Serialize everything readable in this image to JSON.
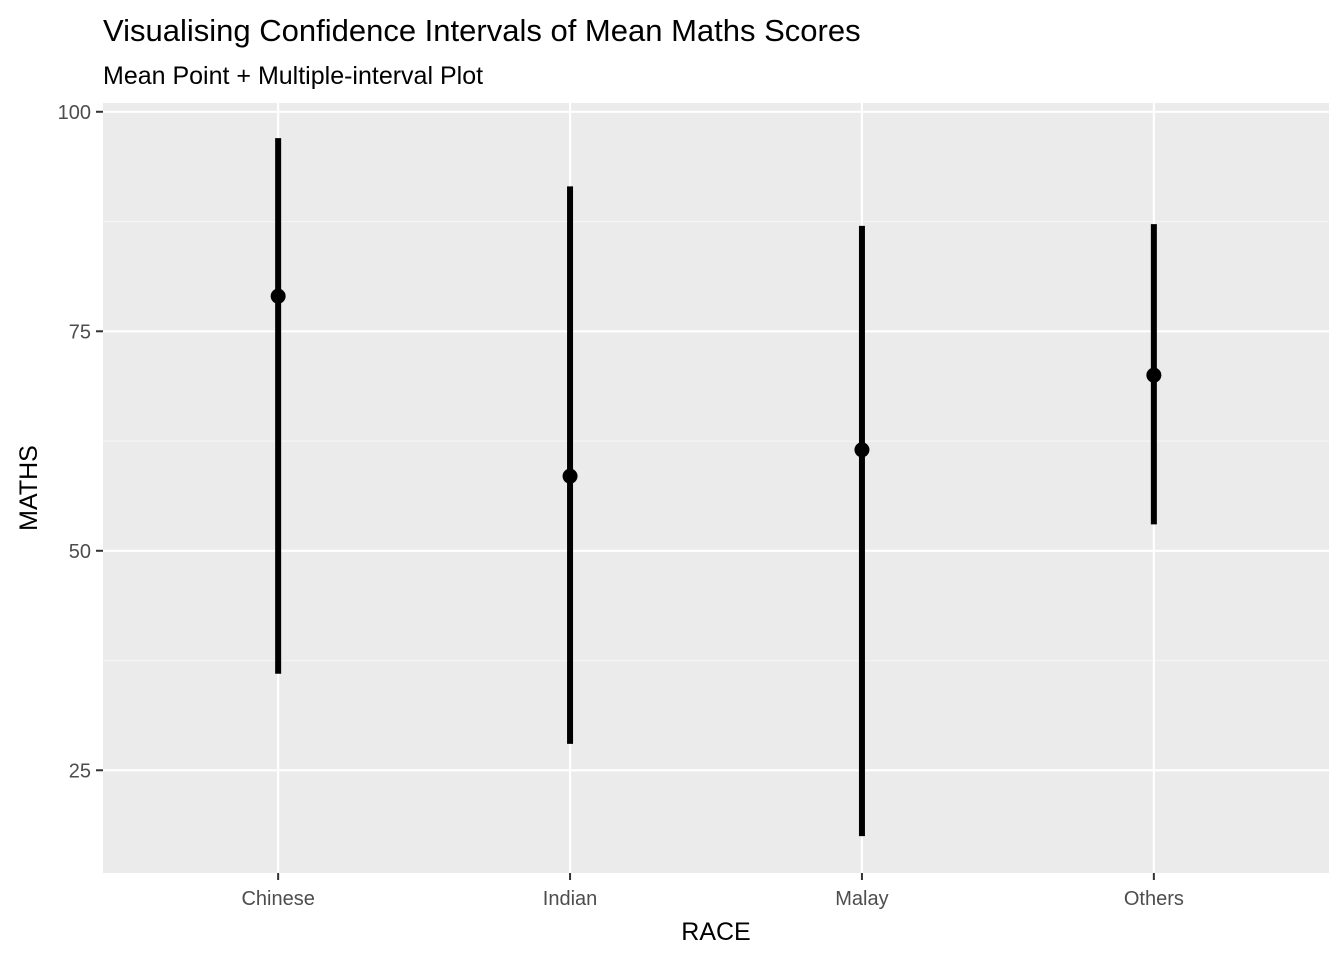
{
  "chart_data": {
    "type": "scatter",
    "title": "Visualising Confidence Intervals of Mean Maths Scores",
    "subtitle": "Mean Point + Multiple-interval Plot",
    "xlabel": "RACE",
    "ylabel": "MATHS",
    "categories": [
      "Chinese",
      "Indian",
      "Malay",
      "Others"
    ],
    "mean": [
      79.0,
      58.5,
      61.5,
      70.0
    ],
    "interval_low": [
      36.0,
      28.0,
      17.5,
      53.0
    ],
    "interval_high": [
      97.0,
      91.5,
      87.0,
      87.2
    ],
    "ylim": [
      13.3,
      101.0
    ],
    "yticks": [
      25,
      50,
      75,
      100
    ],
    "grid": true,
    "legend": "none",
    "colors": {
      "panel_background": "#ebebeb",
      "grid_major": "#ffffff",
      "grid_minor": "#f5f5f5",
      "mark": "#000000",
      "tick_text": "#4d4d4d",
      "tick_mark": "#333333"
    }
  }
}
